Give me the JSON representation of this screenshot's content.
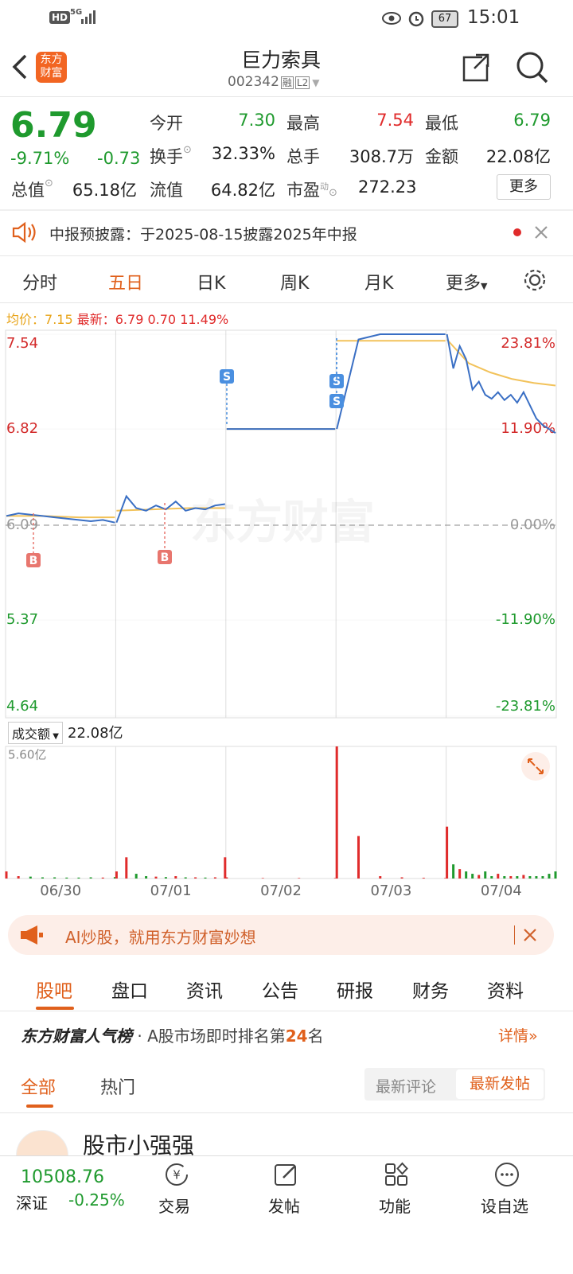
{
  "status_bar": {
    "hd": "HD",
    "network": "5G",
    "battery": "67",
    "time": "15:01"
  },
  "header": {
    "logo": "东方财富",
    "title": "巨力索具",
    "code": "002342",
    "tags": [
      "融",
      "L2"
    ]
  },
  "quote": {
    "price": "6.79",
    "change_pct": "-9.71%",
    "change": "-0.73",
    "stats": [
      [
        {
          "label": "今开",
          "value": "7.30"
        },
        {
          "label": "最高",
          "value": "7.54"
        },
        {
          "label": "最低",
          "value": "6.79"
        }
      ],
      [
        {
          "label": "换手",
          "value": "32.33%"
        },
        {
          "label": "总手",
          "value": "308.7万"
        },
        {
          "label": "金额",
          "value": "22.08亿"
        }
      ],
      [
        {
          "label": "总值",
          "value": "65.18亿"
        },
        {
          "label": "流值",
          "value": "64.82亿"
        },
        {
          "label": "市盈",
          "sup": "动",
          "value": "272.23"
        }
      ]
    ],
    "more": "更多"
  },
  "notice": "中报预披露：于2025-08-15披露2025年中报",
  "chart_tabs": [
    "分时",
    "五日",
    "日K",
    "周K",
    "月K",
    "更多"
  ],
  "legend": {
    "avg_label": "均价：",
    "avg": "7.15",
    "latest_label": "最新：",
    "latest": "6.79",
    "change": "0.70",
    "pct": "11.49%"
  },
  "chart_data": {
    "type": "line",
    "watermark": "东方财富",
    "ylim": [
      4.64,
      7.54
    ],
    "yticks": [
      7.54,
      6.82,
      6.09,
      5.37,
      4.64
    ],
    "pct_labels": [
      "23.81%",
      "11.90%",
      "0.00%",
      "-11.90%",
      "-23.81%"
    ],
    "price_color": "#3a6fc4",
    "avg_color": "#f2c25a",
    "up_color": "#e02b2b",
    "down_color": "#1f9a2e",
    "days": [
      {
        "date": "06/30",
        "price": [
          6.16,
          6.18,
          6.17,
          6.16,
          6.15,
          6.14,
          6.13,
          6.12,
          6.13,
          6.11
        ],
        "avg": [
          6.16,
          6.16,
          6.15,
          6.15
        ],
        "volume": [
          0.3,
          0.1,
          0.08,
          0.05,
          0.05,
          0.04,
          0.04,
          0.05,
          0.04,
          0.06
        ]
      },
      {
        "date": "07/01",
        "price": [
          6.11,
          6.31,
          6.22,
          6.2,
          6.24,
          6.21,
          6.27,
          6.2,
          6.22,
          6.21,
          6.24,
          6.25
        ],
        "avg": [
          6.2,
          6.21,
          6.22,
          6.22
        ],
        "volume": [
          0.3,
          0.9,
          0.2,
          0.1,
          0.08,
          0.06,
          0.1,
          0.05,
          0.05,
          0.04,
          0.05,
          0.9
        ]
      },
      {
        "date": "07/02",
        "price": [
          6.82,
          6.82,
          6.82,
          6.82
        ],
        "avg": [
          6.82,
          6.82
        ],
        "volume": [
          0.05,
          0.02,
          0.02,
          0.02
        ]
      },
      {
        "date": "07/03",
        "price": [
          6.82,
          7.5,
          7.54,
          7.54,
          7.54,
          7.54
        ],
        "avg": [
          7.49,
          7.49,
          7.49
        ],
        "volume": [
          5.6,
          1.8,
          0.1,
          0.05,
          0.03,
          0.02
        ]
      },
      {
        "date": "07/04",
        "price": [
          7.54,
          7.28,
          7.45,
          7.35,
          7.12,
          7.18,
          7.08,
          7.05,
          7.1,
          7.04,
          7.08,
          7.02,
          7.1,
          7.0,
          6.9,
          6.85,
          6.82,
          6.79
        ],
        "avg": [
          7.5,
          7.32,
          7.25,
          7.2,
          7.17,
          7.15
        ],
        "volume": [
          2.2,
          0.6,
          0.4,
          0.3,
          0.2,
          0.15,
          0.3,
          0.1,
          0.2,
          0.1,
          0.1,
          0.1,
          0.15,
          0.1,
          0.1,
          0.1,
          0.2,
          0.3
        ]
      }
    ],
    "markers": [
      "B",
      "B",
      "S",
      "S",
      "S"
    ],
    "volume_label": "成交额",
    "volume_total": "22.08亿",
    "volume_ylim": [
      0,
      5.6
    ],
    "volume_yticks": [
      {
        "value": 5.6,
        "label": "5.60亿"
      }
    ]
  },
  "banner": "AI炒股，就用东方财富妙想",
  "tabs": [
    "股吧",
    "盘口",
    "资讯",
    "公告",
    "研报",
    "财务",
    "资料"
  ],
  "ranking": {
    "brand": "东方财富人气榜",
    "text": "· A股市场即时排名第",
    "rank": "24",
    "suffix": "名",
    "detail": "详情"
  },
  "sub_tabs": [
    "全部",
    "热门"
  ],
  "sort_tabs": [
    "最新评论",
    "最新发帖"
  ],
  "post": {
    "author": "股市小强强"
  },
  "bottom_bar": {
    "index_value": "10508.76",
    "index_name": "深证",
    "index_change": "-0.25%",
    "items": [
      "交易",
      "发帖",
      "功能",
      "设自选"
    ]
  }
}
